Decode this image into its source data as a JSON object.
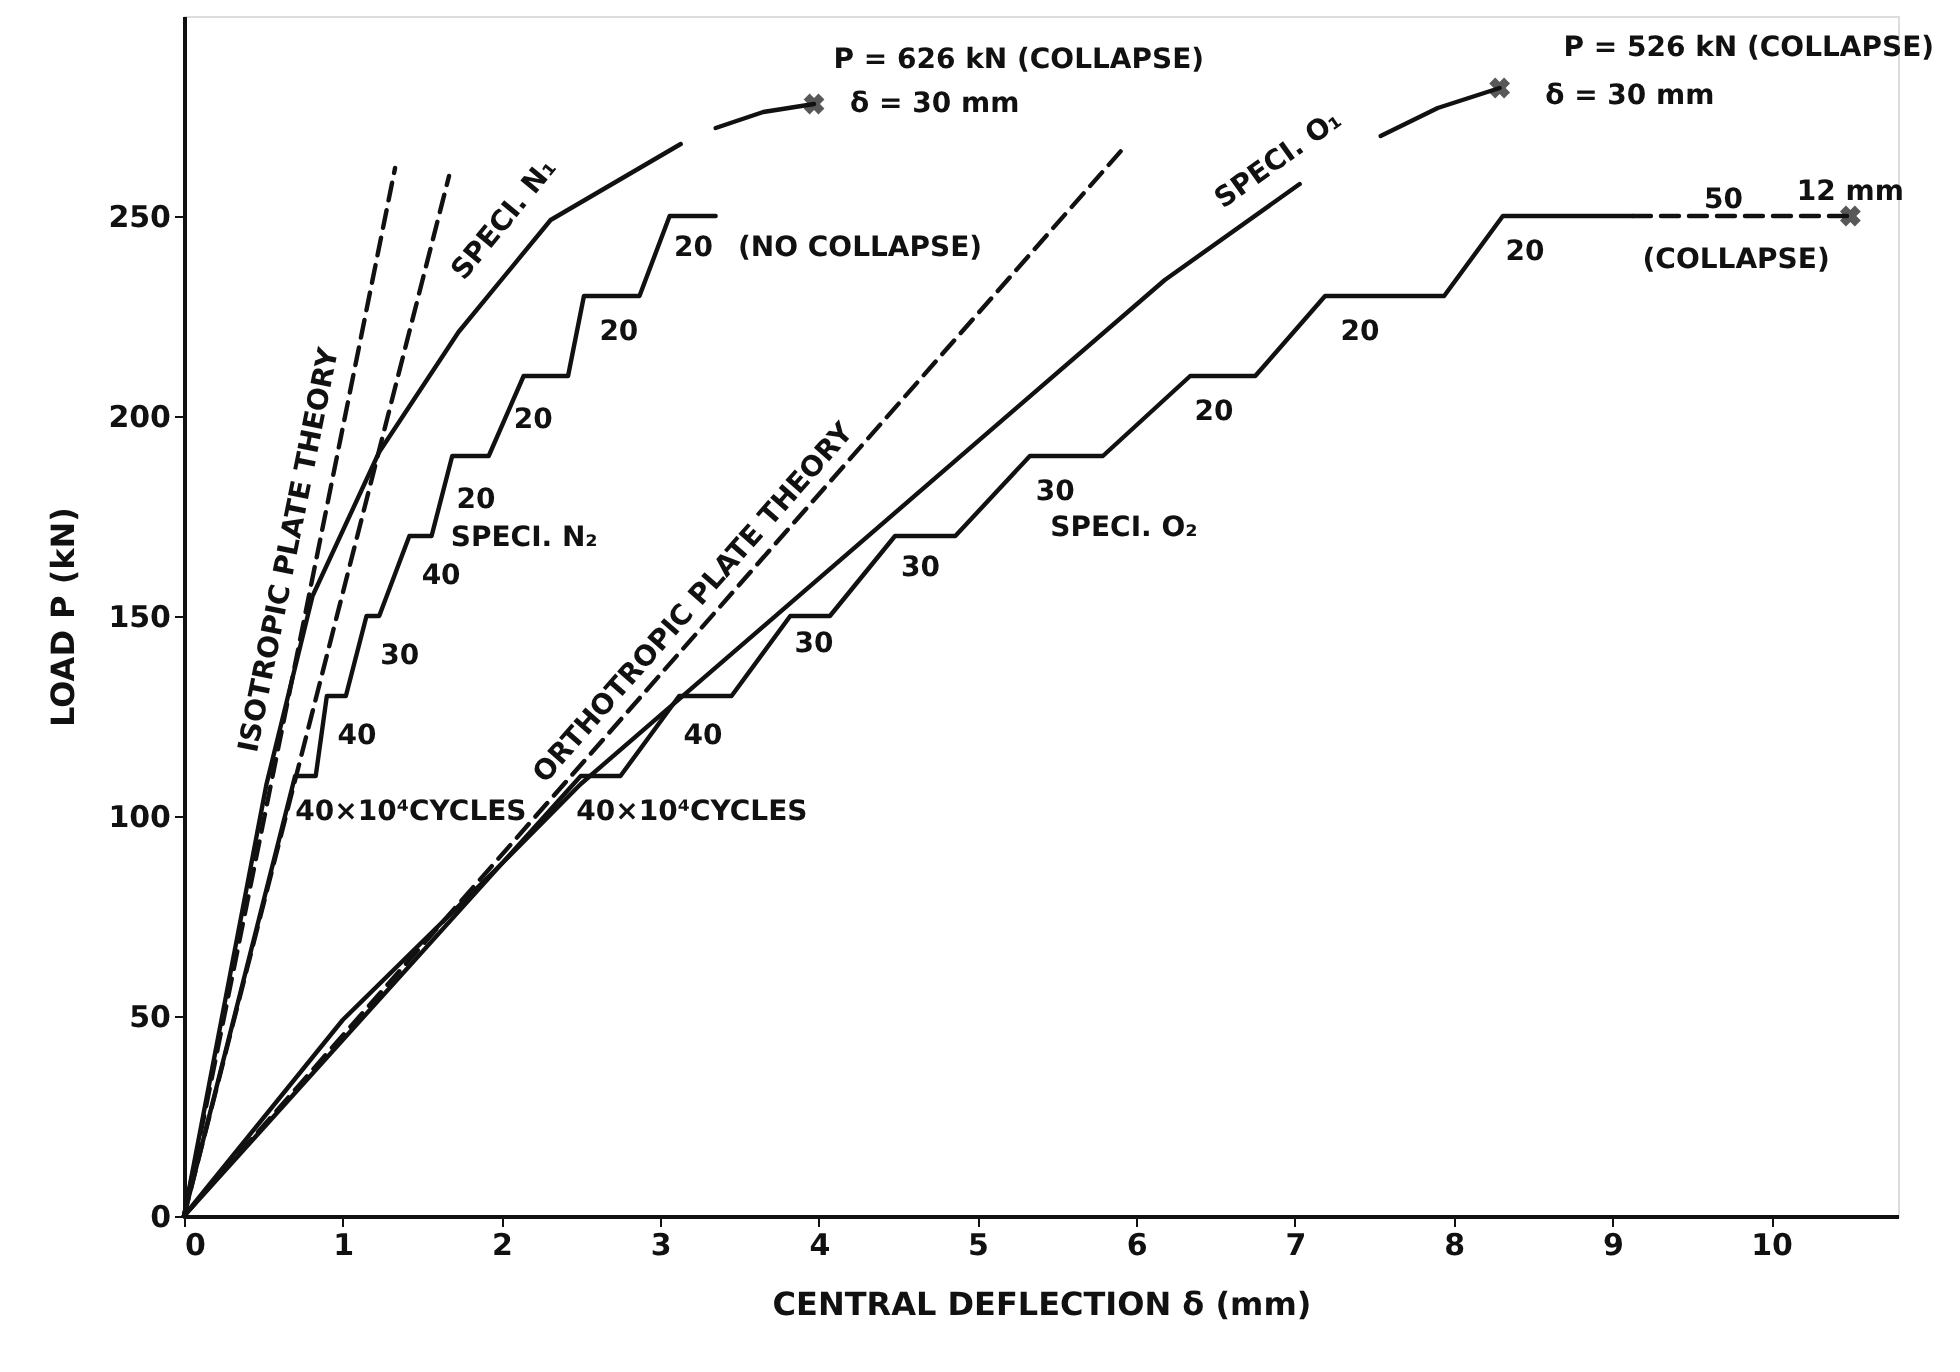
{
  "chart_data": {
    "type": "line",
    "xlabel": "CENTRAL DEFLECTION δ (mm)",
    "ylabel": "LOAD P (kN)",
    "xlim": [
      0,
      10.8
    ],
    "xticks": [
      0,
      1,
      2,
      3,
      4,
      5,
      6,
      7,
      8,
      9,
      10
    ],
    "ylim": [
      0,
      300
    ],
    "yticks": [
      0,
      50,
      100,
      150,
      200,
      250
    ],
    "grid": false,
    "series": [
      {
        "name": "ISOTROPIC PLATE THEORY",
        "type": "line",
        "line_style": "dashed",
        "color": "#111111",
        "x": [
          0,
          1.33
        ],
        "values": [
          0,
          262
        ]
      },
      {
        "type": "line",
        "line_style": "dashed",
        "color": "#111111",
        "x": [
          0,
          1.67
        ],
        "values": [
          0,
          260
        ]
      },
      {
        "name": "SPECI. N₁",
        "type": "line",
        "line_style": "solid",
        "color": "#111111",
        "x": [
          0,
          0.52,
          0.81,
          1.23,
          1.73,
          2.31,
          3.13
        ],
        "values": [
          0,
          108,
          155,
          191,
          221,
          249,
          268
        ]
      },
      {
        "type": "line",
        "line_style": "solid",
        "color": "#111111",
        "x": [
          3.35,
          3.65,
          3.97
        ],
        "values": [
          272,
          276,
          278
        ]
      },
      {
        "name": "SPECI. N₂",
        "type": "line",
        "line_style": "solid",
        "color": "#111111",
        "x": [
          0,
          0.7,
          0.83,
          0.9,
          1.02,
          1.15,
          1.23,
          1.42,
          1.56,
          1.69,
          1.92,
          2.14,
          2.42,
          2.52,
          2.87,
          3.06,
          3.35
        ],
        "values": [
          0,
          110,
          110,
          130,
          130,
          150,
          150,
          170,
          170,
          190,
          190,
          210,
          210,
          230,
          230,
          250,
          250
        ]
      },
      {
        "name": "ORTHOTROPIC PLATE THEORY",
        "type": "line",
        "line_style": "dashed",
        "color": "#111111",
        "x": [
          0,
          5.92
        ],
        "values": [
          0,
          267
        ]
      },
      {
        "name": "SPECI. O₁",
        "type": "line",
        "line_style": "solid",
        "color": "#111111",
        "x": [
          0,
          1.0,
          2.0,
          2.5,
          6.18,
          7.03
        ],
        "values": [
          0,
          49,
          88,
          108,
          234,
          258
        ]
      },
      {
        "name": "SPECI. O₂",
        "type": "line",
        "line_style": "solid",
        "color": "#111111",
        "x": [
          0,
          2.5,
          2.75,
          3.12,
          3.45,
          3.82,
          4.07,
          4.48,
          4.86,
          5.33,
          5.79,
          6.34,
          6.75,
          7.19,
          7.94,
          8.31,
          9.13
        ],
        "values": [
          0,
          110,
          110,
          130,
          130,
          150,
          150,
          170,
          170,
          190,
          190,
          210,
          210,
          230,
          230,
          250,
          250
        ]
      },
      {
        "type": "line",
        "line_style": "dashed",
        "color": "#111111",
        "x": [
          9.13,
          10.5
        ],
        "values": [
          250,
          250
        ]
      },
      {
        "type": "line",
        "line_style": "solid",
        "color": "#111111",
        "x": [
          7.54,
          7.9,
          8.29
        ],
        "values": [
          270,
          277,
          282
        ]
      },
      {
        "type": "scatter",
        "marker": "cross",
        "color": "#111111",
        "x": [
          3.97,
          8.29,
          10.5
        ],
        "values": [
          278,
          282,
          250
        ]
      }
    ],
    "annotations": [
      "40×10⁴CYCLES",
      "40",
      "30",
      "40",
      "20",
      "20",
      "20",
      "20",
      "(NO COLLAPSE)",
      "40×10⁴CYCLES",
      "40",
      "30",
      "30",
      "30",
      "20",
      "20",
      "20",
      "50",
      "12 mm",
      "(COLLAPSE)",
      "P = 626 kN (COLLAPSE)",
      "δ = 30 mm",
      "P = 526 kN (COLLAPSE)",
      "δ = 30 mm"
    ]
  }
}
